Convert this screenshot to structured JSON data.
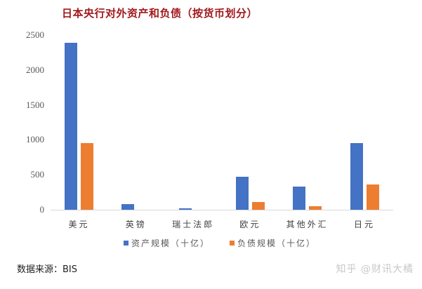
{
  "title": "日本央行对外资产和负债（按货币划分）",
  "colors": {
    "asset": "#4472c4",
    "liability": "#ed7d31",
    "title": "#a0191c"
  },
  "legend": {
    "asset": "资产规模（十亿）",
    "liability": "负债规模（十亿）"
  },
  "source": "数据来源：BIS",
  "watermark": "知乎 @财讯大橘",
  "chart_data": {
    "type": "bar",
    "title": "日本央行对外资产和负债（按货币划分）",
    "xlabel": "",
    "ylabel": "",
    "categories": [
      "美元",
      "英镑",
      "瑞士法郎",
      "欧元",
      "其他外汇",
      "日元"
    ],
    "series": [
      {
        "name": "资产规模（十亿）",
        "color": "#4472c4",
        "values": [
          2390,
          80,
          20,
          470,
          330,
          955
        ]
      },
      {
        "name": "负债规模（十亿）",
        "color": "#ed7d31",
        "values": [
          955,
          0,
          0,
          110,
          50,
          360
        ]
      }
    ],
    "ylim": [
      0,
      2500
    ],
    "yticks": [
      0,
      500,
      1000,
      1500,
      2000,
      2500
    ],
    "grid": false,
    "legend_position": "bottom"
  }
}
